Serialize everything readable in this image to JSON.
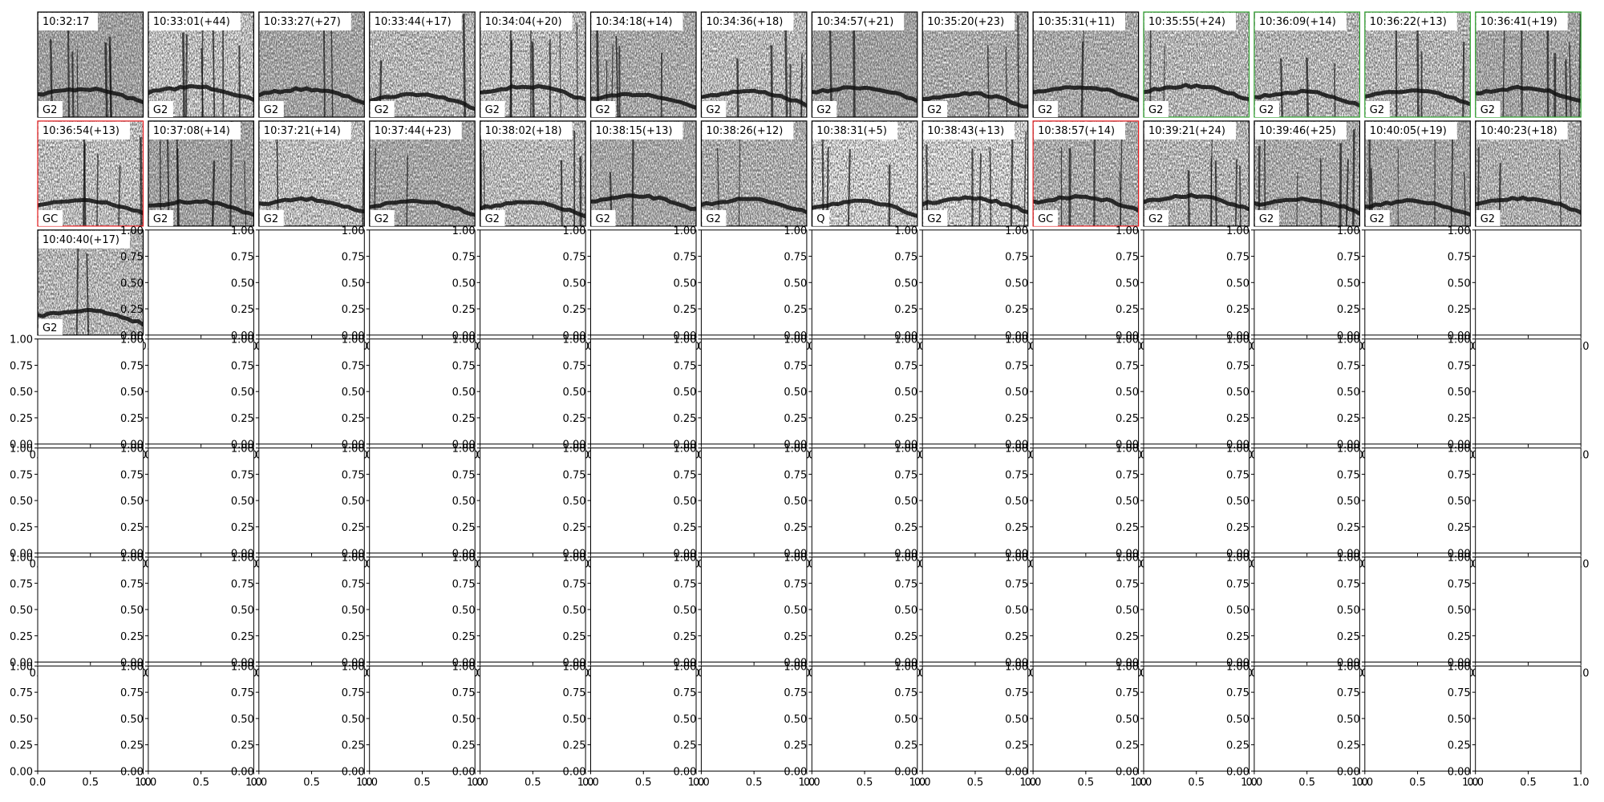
{
  "panels": [
    {
      "time": "10:32:17",
      "label": "G2",
      "border": "#000000"
    },
    {
      "time": "10:33:01(+44)",
      "label": "G2",
      "border": "#000000"
    },
    {
      "time": "10:33:27(+27)",
      "label": "G2",
      "border": "#000000"
    },
    {
      "time": "10:33:44(+17)",
      "label": "G2",
      "border": "#000000"
    },
    {
      "time": "10:34:04(+20)",
      "label": "G2",
      "border": "#000000"
    },
    {
      "time": "10:34:18(+14)",
      "label": "G2",
      "border": "#000000"
    },
    {
      "time": "10:34:36(+18)",
      "label": "G2",
      "border": "#000000"
    },
    {
      "time": "10:34:57(+21)",
      "label": "G2",
      "border": "#000000"
    },
    {
      "time": "10:35:20(+23)",
      "label": "G2",
      "border": "#000000"
    },
    {
      "time": "10:35:31(+11)",
      "label": "G2",
      "border": "#000000"
    },
    {
      "time": "10:35:55(+24)",
      "label": "G2",
      "border": "#2ca02c"
    },
    {
      "time": "10:36:09(+14)",
      "label": "G2",
      "border": "#2ca02c"
    },
    {
      "time": "10:36:22(+13)",
      "label": "G2",
      "border": "#2ca02c"
    },
    {
      "time": "10:36:41(+19)",
      "label": "G2",
      "border": "#2ca02c"
    },
    {
      "time": "10:36:54(+13)",
      "label": "GC",
      "border": "#e41a1c"
    },
    {
      "time": "10:37:08(+14)",
      "label": "G2",
      "border": "#000000"
    },
    {
      "time": "10:37:21(+14)",
      "label": "G2",
      "border": "#000000"
    },
    {
      "time": "10:37:44(+23)",
      "label": "G2",
      "border": "#000000"
    },
    {
      "time": "10:38:02(+18)",
      "label": "G2",
      "border": "#000000"
    },
    {
      "time": "10:38:15(+13)",
      "label": "G2",
      "border": "#000000"
    },
    {
      "time": "10:38:26(+12)",
      "label": "G2",
      "border": "#000000"
    },
    {
      "time": "10:38:31(+5)",
      "label": "Q",
      "border": "#000000"
    },
    {
      "time": "10:38:43(+13)",
      "label": "G2",
      "border": "#000000"
    },
    {
      "time": "10:38:57(+14)",
      "label": "GC",
      "border": "#e41a1c"
    },
    {
      "time": "10:39:21(+24)",
      "label": "G2",
      "border": "#000000"
    },
    {
      "time": "10:39:46(+25)",
      "label": "G2",
      "border": "#000000"
    },
    {
      "time": "10:40:05(+19)",
      "label": "G2",
      "border": "#000000"
    },
    {
      "time": "10:40:23(+18)",
      "label": "G2",
      "border": "#000000"
    },
    {
      "time": "10:40:40(+17)",
      "label": "G2",
      "border": "#000000"
    }
  ],
  "empty_axes": {
    "yticks": [
      "0.00",
      "0.25",
      "0.50",
      "0.75",
      "1.00"
    ],
    "xticks": [
      "0.0",
      "0.5",
      "1.0"
    ]
  }
}
